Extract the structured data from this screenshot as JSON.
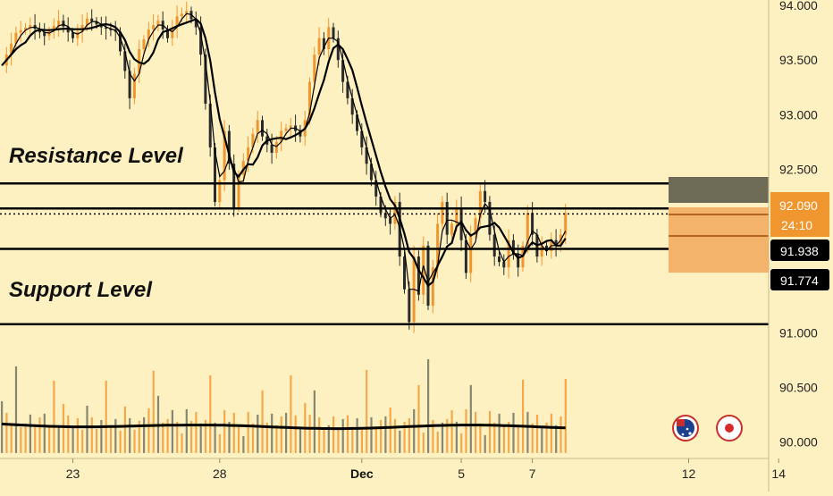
{
  "chart_data": {
    "type": "candlestick",
    "instrument_hint": "price chart with moving averages and volume",
    "y_axis": {
      "ticks": [
        "94.000",
        "93.500",
        "93.000",
        "92.500",
        "91.000",
        "90.500",
        "90.000"
      ],
      "tick_values": [
        94.0,
        93.5,
        93.0,
        92.5,
        91.0,
        90.5,
        90.0
      ],
      "range": [
        89.85,
        94.05
      ]
    },
    "x_axis": {
      "ticks": [
        "23",
        "28",
        "Dec",
        "5",
        "7",
        "12",
        "14"
      ],
      "tick_index": [
        15,
        46,
        76,
        97,
        112,
        145,
        164
      ]
    },
    "annotations": {
      "resistance_label": "Resistance Level",
      "support_label": "Support Level"
    },
    "levels": {
      "resistance_zone": [
        92.37,
        92.14
      ],
      "support_zone": [
        91.77,
        91.08
      ],
      "current_price": 92.09
    },
    "price_badges": {
      "current": "92.090",
      "countdown": "24:10",
      "level_1": "91.938",
      "level_2": "91.774"
    },
    "series": [
      {
        "name": "price",
        "color": "#f0962e"
      },
      {
        "name": "fast MA",
        "color": "#000000"
      },
      {
        "name": "slow MA",
        "color": "#000000"
      },
      {
        "name": "volume",
        "color": "#f0962e"
      },
      {
        "name": "volume MA",
        "color": "#000000"
      }
    ],
    "price_path": [
      [
        0,
        93.45
      ],
      [
        3,
        93.75
      ],
      [
        6,
        93.82
      ],
      [
        9,
        93.72
      ],
      [
        12,
        93.86
      ],
      [
        15,
        93.7
      ],
      [
        18,
        93.88
      ],
      [
        21,
        93.8
      ],
      [
        24,
        93.76
      ],
      [
        26,
        93.4
      ],
      [
        27,
        93.15
      ],
      [
        29,
        93.6
      ],
      [
        31,
        93.78
      ],
      [
        33,
        93.86
      ],
      [
        35,
        93.7
      ],
      [
        37,
        93.9
      ],
      [
        39,
        93.95
      ],
      [
        41,
        93.8
      ],
      [
        42,
        93.55
      ],
      [
        43,
        93.1
      ],
      [
        44,
        92.7
      ],
      [
        45,
        92.2
      ],
      [
        46,
        92.4
      ],
      [
        47,
        92.85
      ],
      [
        48,
        92.55
      ],
      [
        49,
        92.15
      ],
      [
        50,
        92.45
      ],
      [
        52,
        92.7
      ],
      [
        54,
        92.95
      ],
      [
        55,
        92.8
      ],
      [
        57,
        92.65
      ],
      [
        59,
        92.85
      ],
      [
        61,
        92.9
      ],
      [
        63,
        92.8
      ],
      [
        64,
        92.95
      ],
      [
        65,
        93.3
      ],
      [
        66,
        93.55
      ],
      [
        67,
        93.7
      ],
      [
        68,
        93.6
      ],
      [
        69,
        93.8
      ],
      [
        70,
        93.7
      ],
      [
        72,
        93.3
      ],
      [
        74,
        93.0
      ],
      [
        76,
        92.7
      ],
      [
        78,
        92.4
      ],
      [
        80,
        92.1
      ],
      [
        82,
        92.0
      ],
      [
        83,
        92.2
      ],
      [
        84,
        91.7
      ],
      [
        85,
        91.4
      ],
      [
        86,
        91.1
      ],
      [
        87,
        91.7
      ],
      [
        88,
        91.35
      ],
      [
        89,
        91.8
      ],
      [
        90,
        91.25
      ],
      [
        91,
        91.6
      ],
      [
        92,
        92.0
      ],
      [
        93,
        92.2
      ],
      [
        94,
        91.9
      ],
      [
        95,
        92.0
      ],
      [
        96,
        92.15
      ],
      [
        97,
        91.85
      ],
      [
        98,
        91.55
      ],
      [
        99,
        91.9
      ],
      [
        100,
        92.05
      ],
      [
        101,
        92.3
      ],
      [
        102,
        92.2
      ],
      [
        103,
        91.9
      ],
      [
        104,
        91.7
      ],
      [
        106,
        91.6
      ],
      [
        107,
        91.85
      ],
      [
        109,
        91.6
      ],
      [
        110,
        91.8
      ],
      [
        111,
        92.1
      ],
      [
        112,
        91.9
      ],
      [
        113,
        91.7
      ],
      [
        114,
        91.8
      ],
      [
        115,
        91.75
      ],
      [
        116,
        91.85
      ],
      [
        117,
        91.8
      ],
      [
        118,
        91.9
      ],
      [
        119,
        92.1
      ]
    ],
    "volume_ma_level": 90.14,
    "volume_base": 89.9
  }
}
